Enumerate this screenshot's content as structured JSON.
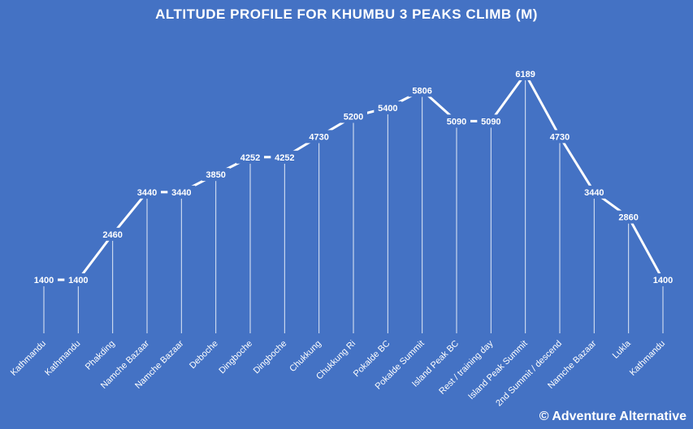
{
  "chart_data": {
    "type": "line",
    "title": "ALTITUDE PROFILE FOR KHUMBU 3 PEAKS CLIMB (M)",
    "xlabel": "",
    "ylabel": "",
    "ylim": [
      0,
      7000
    ],
    "grid": false,
    "drop_lines": true,
    "categories": [
      "Kathmandu",
      "Kathmandu",
      "Phakding",
      "Namche Bazaar",
      "Namche Bazaar",
      "Deboche",
      "Dingboche",
      "Dingboche",
      "Chukkung",
      "Chukkung Ri",
      "Pokalde BC",
      "Pokalde Summit",
      "Island Peak BC",
      "Rest / training day",
      "Island Peak Summit",
      "2nd Summit / descend",
      "Namche Bazaar",
      "Lukla",
      "Kathmandu"
    ],
    "values": [
      1400,
      1400,
      2460,
      3440,
      3440,
      3850,
      4252,
      4252,
      4730,
      5200,
      5400,
      5806,
      5090,
      5090,
      6189,
      4730,
      3440,
      2860,
      1400
    ],
    "colors": {
      "background": "#4472C4",
      "line": "#FFFFFF"
    }
  },
  "footer": {
    "copyright": "© Adventure Alternative"
  }
}
